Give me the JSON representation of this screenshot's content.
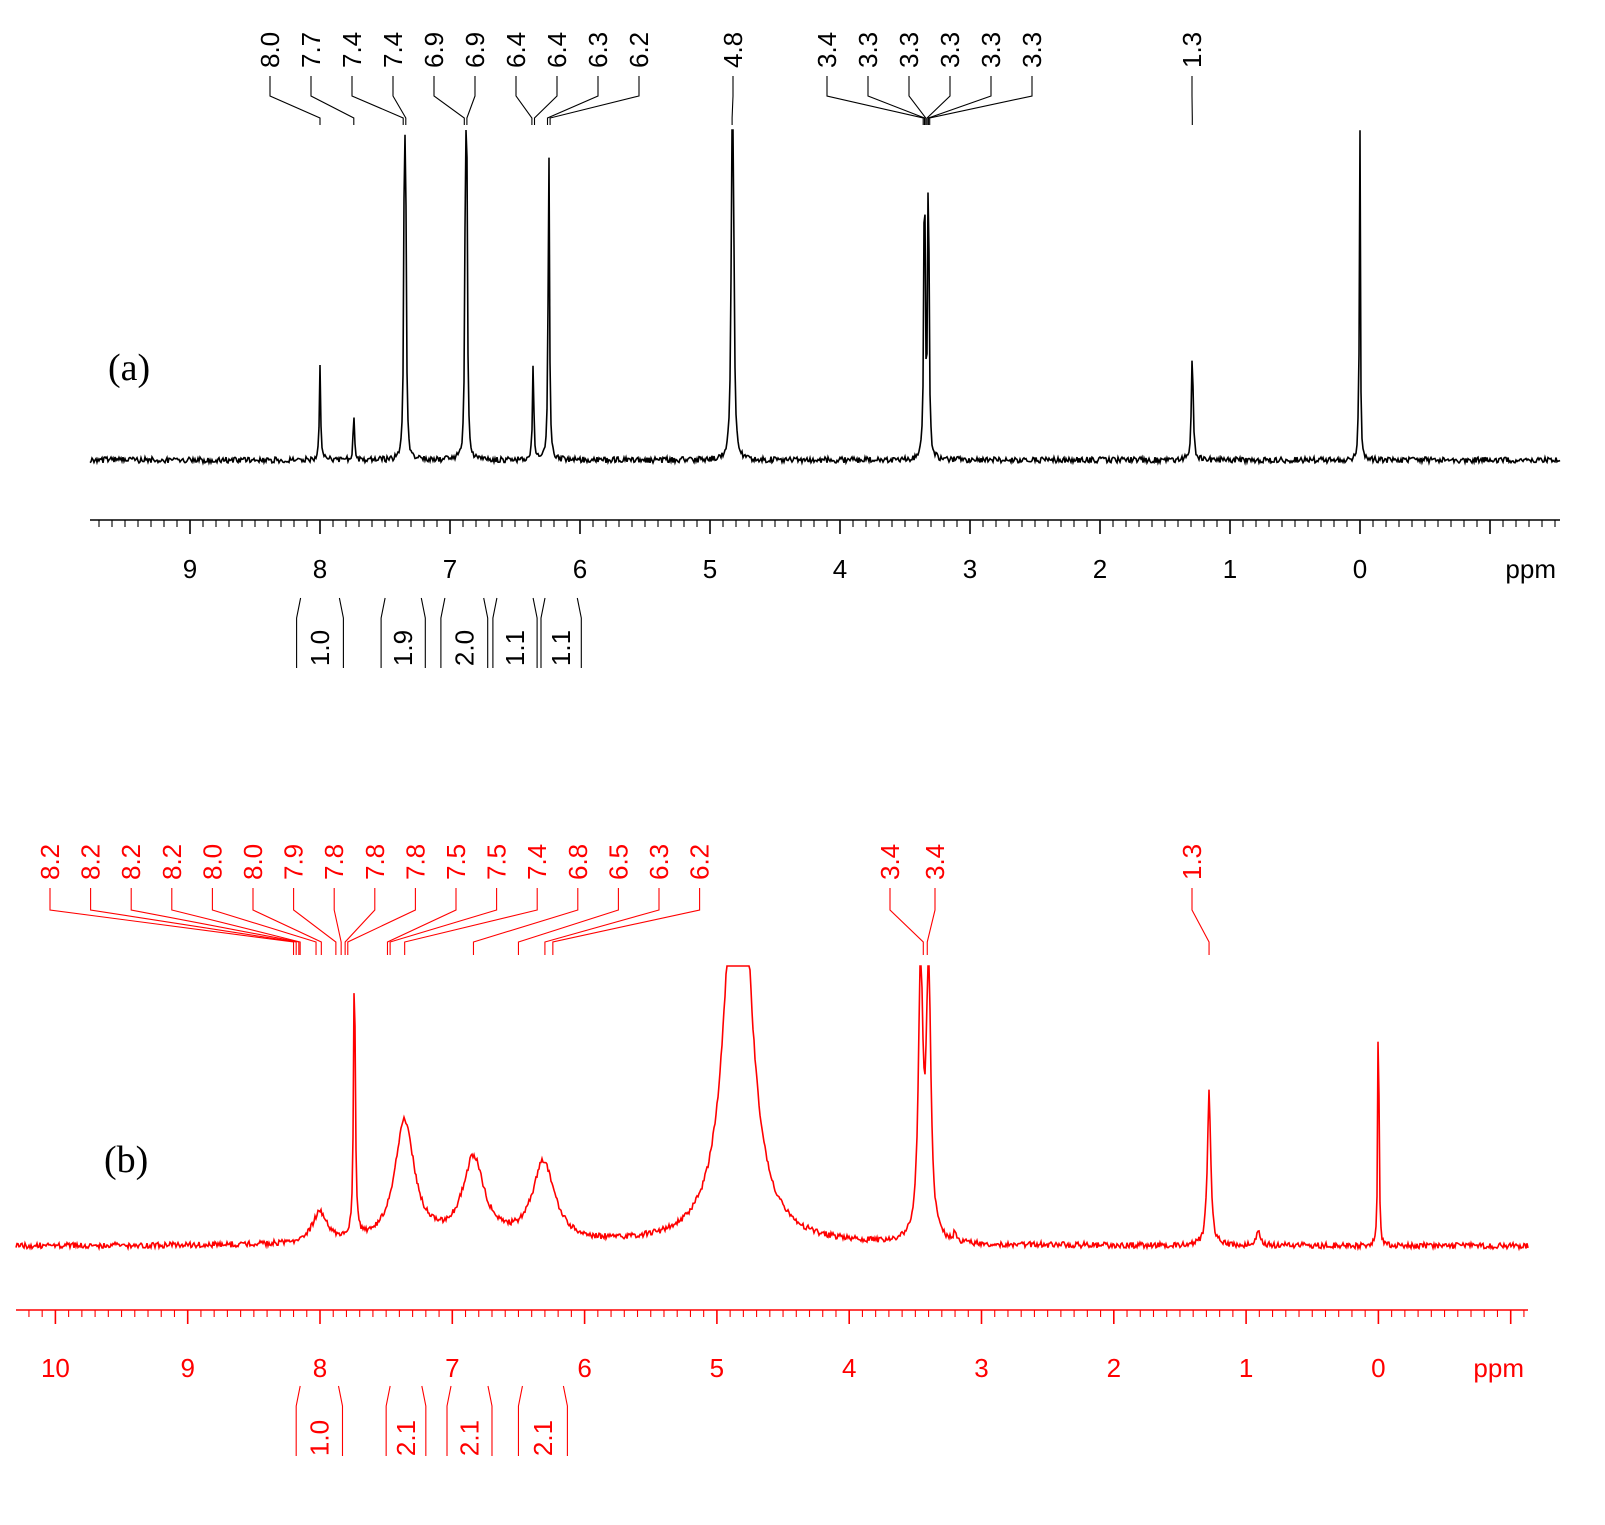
{
  "chart_data": [
    {
      "type": "line",
      "panel_label": "(a)",
      "color": "#000000",
      "xlabel": "ppm",
      "x_direction": "reversed",
      "xlim": [
        9.7,
        -1.5
      ],
      "x_ticks": [
        "9",
        "8",
        "7",
        "6",
        "5",
        "4",
        "3",
        "2",
        "1",
        "0"
      ],
      "peaks": [
        {
          "ppm": 8.0,
          "height": 0.29,
          "width": 0.006
        },
        {
          "ppm": 7.74,
          "height": 0.15,
          "width": 0.006
        },
        {
          "ppm": 7.35,
          "height": 1.0,
          "width": 0.006
        },
        {
          "ppm": 7.34,
          "height": 0.62,
          "width": 0.006
        },
        {
          "ppm": 6.88,
          "height": 1.0,
          "width": 0.006
        },
        {
          "ppm": 6.87,
          "height": 0.72,
          "width": 0.006
        },
        {
          "ppm": 6.36,
          "height": 0.31,
          "width": 0.006
        },
        {
          "ppm": 6.24,
          "height": 1.0,
          "width": 0.006
        },
        {
          "ppm": 4.83,
          "height": 1.0,
          "width": 0.008
        },
        {
          "ppm": 4.82,
          "height": 0.6,
          "width": 0.008
        },
        {
          "ppm": 3.35,
          "height": 1.0,
          "width": 0.006
        },
        {
          "ppm": 3.32,
          "height": 1.0,
          "width": 0.006
        },
        {
          "ppm": 1.29,
          "height": 0.33,
          "width": 0.008
        },
        {
          "ppm": 0.0,
          "height": 1.0,
          "width": 0.004
        },
        {
          "ppm": 0.01,
          "height": 0.17,
          "width": 0.004
        }
      ],
      "peak_labels": [
        {
          "text": "8.0",
          "ppm": 8.0
        },
        {
          "text": "7.7",
          "ppm": 7.74
        },
        {
          "text": "7.4",
          "ppm": 7.36
        },
        {
          "text": "7.4",
          "ppm": 7.34
        },
        {
          "text": "6.9",
          "ppm": 6.89
        },
        {
          "text": "6.9",
          "ppm": 6.87
        },
        {
          "text": "6.4",
          "ppm": 6.37
        },
        {
          "text": "6.4",
          "ppm": 6.35
        },
        {
          "text": "6.3",
          "ppm": 6.25
        },
        {
          "text": "6.2",
          "ppm": 6.23
        },
        {
          "text": "4.8",
          "ppm": 4.83
        },
        {
          "text": "3.4",
          "ppm": 3.36
        },
        {
          "text": "3.3",
          "ppm": 3.35
        },
        {
          "text": "3.3",
          "ppm": 3.34
        },
        {
          "text": "3.3",
          "ppm": 3.33
        },
        {
          "text": "3.3",
          "ppm": 3.32
        },
        {
          "text": "3.3",
          "ppm": 3.31
        },
        {
          "text": "1.3",
          "ppm": 1.29
        }
      ],
      "integrals": [
        {
          "text": "1.0",
          "from": 8.18,
          "to": 7.82
        },
        {
          "text": "1.9",
          "from": 7.53,
          "to": 7.19
        },
        {
          "text": "2.0",
          "from": 7.07,
          "to": 6.71
        },
        {
          "text": "1.1",
          "from": 6.67,
          "to": 6.33
        },
        {
          "text": "1.1",
          "from": 6.3,
          "to": 5.99
        }
      ]
    },
    {
      "type": "line",
      "panel_label": "(b)",
      "color": "#ff0000",
      "xlabel": "ppm",
      "x_direction": "reversed",
      "xlim": [
        10.4,
        -1.3
      ],
      "x_ticks": [
        "10",
        "9",
        "8",
        "7",
        "6",
        "5",
        "4",
        "3",
        "2",
        "1",
        "0"
      ],
      "peaks": [
        {
          "ppm": 8.0,
          "height": 0.11,
          "width": 0.07
        },
        {
          "ppm": 7.74,
          "height": 1.0,
          "width": 0.008
        },
        {
          "ppm": 7.36,
          "height": 0.44,
          "width": 0.09
        },
        {
          "ppm": 6.84,
          "height": 0.3,
          "width": 0.1
        },
        {
          "ppm": 6.31,
          "height": 0.29,
          "width": 0.1
        },
        {
          "ppm": 4.84,
          "height": 1.8,
          "width": 0.1
        },
        {
          "ppm": 3.46,
          "height": 1.0,
          "width": 0.02
        },
        {
          "ppm": 3.4,
          "height": 1.0,
          "width": 0.02
        },
        {
          "ppm": 3.2,
          "height": 0.04,
          "width": 0.01
        },
        {
          "ppm": 1.28,
          "height": 0.56,
          "width": 0.015
        },
        {
          "ppm": 0.91,
          "height": 0.05,
          "width": 0.02
        },
        {
          "ppm": 0.0,
          "height": 1.0,
          "width": 0.005
        }
      ],
      "peak_labels": [
        {
          "text": "8.2",
          "ppm": 8.2
        },
        {
          "text": "8.2",
          "ppm": 8.18
        },
        {
          "text": "8.2",
          "ppm": 8.16
        },
        {
          "text": "8.2",
          "ppm": 8.15
        },
        {
          "text": "8.0",
          "ppm": 8.03
        },
        {
          "text": "8.0",
          "ppm": 7.99
        },
        {
          "text": "7.9",
          "ppm": 7.88
        },
        {
          "text": "7.8",
          "ppm": 7.84
        },
        {
          "text": "7.8",
          "ppm": 7.81
        },
        {
          "text": "7.8",
          "ppm": 7.79
        },
        {
          "text": "7.5",
          "ppm": 7.49
        },
        {
          "text": "7.5",
          "ppm": 7.47
        },
        {
          "text": "7.4",
          "ppm": 7.36
        },
        {
          "text": "6.8",
          "ppm": 6.84
        },
        {
          "text": "6.5",
          "ppm": 6.5
        },
        {
          "text": "6.3",
          "ppm": 6.3
        },
        {
          "text": "6.2",
          "ppm": 6.24
        },
        {
          "text": "3.4",
          "ppm": 3.44
        },
        {
          "text": "3.4",
          "ppm": 3.41
        },
        {
          "text": "1.3",
          "ppm": 1.28
        }
      ],
      "integrals": [
        {
          "text": "1.0",
          "from": 8.18,
          "to": 7.83
        },
        {
          "text": "2.1",
          "from": 7.5,
          "to": 7.2
        },
        {
          "text": "2.1",
          "from": 7.04,
          "to": 6.7
        },
        {
          "text": "2.1",
          "from": 6.5,
          "to": 6.13
        }
      ]
    }
  ]
}
